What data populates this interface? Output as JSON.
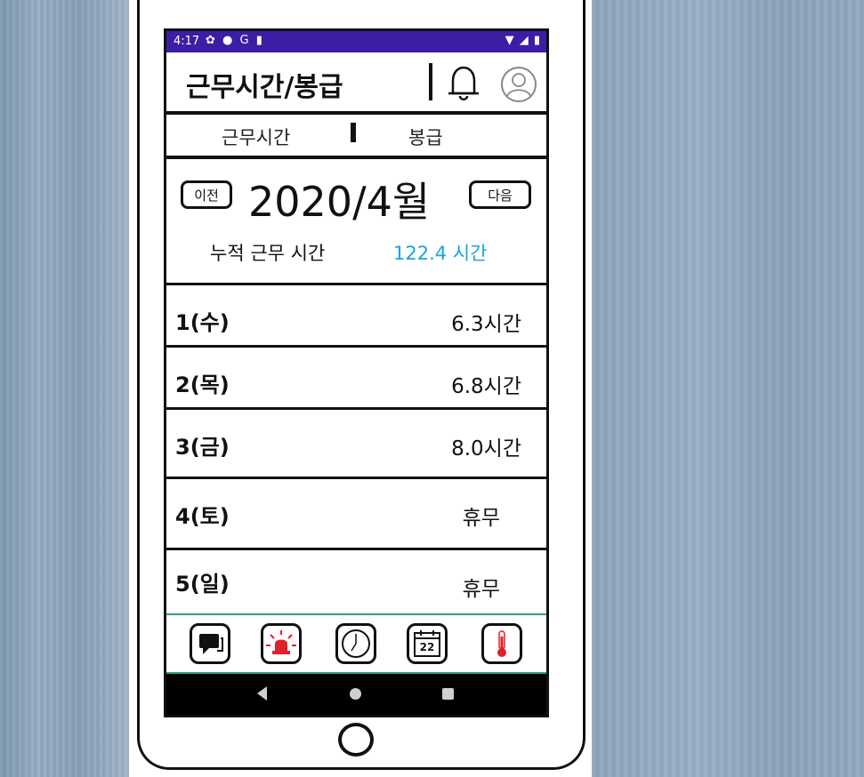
{
  "status_bar": {
    "time": "4:17",
    "left_icons": [
      "gear-icon",
      "shield-icon",
      "google-icon",
      "sim-icon"
    ],
    "right_icons": [
      "wifi-icon",
      "signal-icon",
      "battery-icon"
    ]
  },
  "app_bar": {
    "title": "근무시간/봉급"
  },
  "tabs": [
    {
      "label": "근무시간",
      "selected": true
    },
    {
      "label": "봉급",
      "selected": false
    }
  ],
  "month_nav": {
    "prev_label": "이전",
    "month": "2020/4월",
    "next_label": "다음"
  },
  "summary": {
    "label": "누적 근무 시간",
    "value": "122.4 시간",
    "value_color": "#1aa3e0"
  },
  "days": [
    {
      "day": "1(수)",
      "hours": "6.3시간"
    },
    {
      "day": "2(목)",
      "hours": "6.8시간"
    },
    {
      "day": "3(금)",
      "hours": "8.0시간"
    },
    {
      "day": "4(토)",
      "hours": "휴무"
    },
    {
      "day": "5(일)",
      "hours": "휴무"
    }
  ],
  "bottom_nav": {
    "items": [
      "chat-icon",
      "alarm-siren-icon",
      "clock-icon",
      "calendar-icon",
      "thermometer-icon"
    ],
    "calendar_day": "22",
    "accent_color": "#2aa38a",
    "alert_color": "#e0202a"
  },
  "colors": {
    "status_bar": "#3b1ea3"
  }
}
